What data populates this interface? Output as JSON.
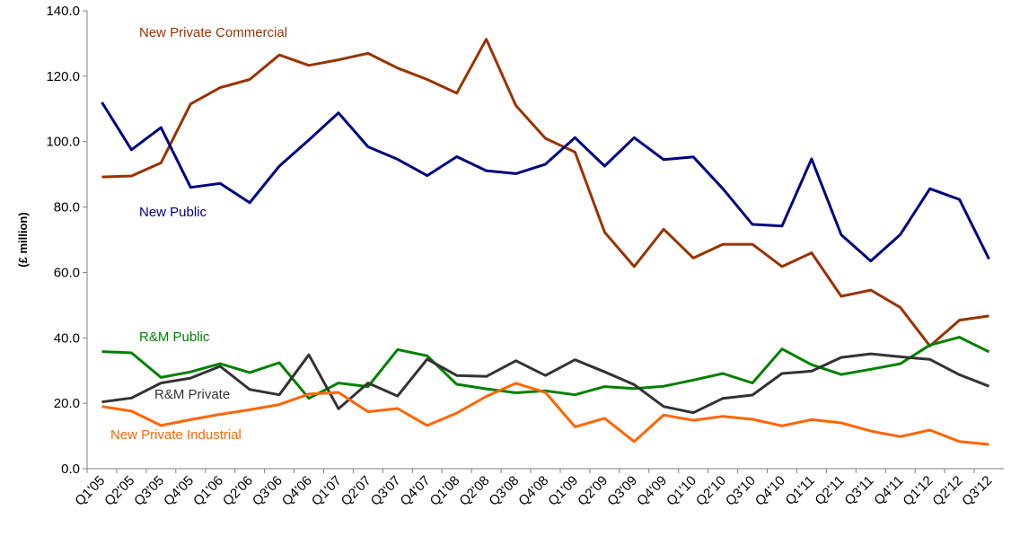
{
  "chart_data": {
    "type": "line",
    "y_label": "(£ million)",
    "categories": [
      "Q1'05",
      "Q2'05",
      "Q3'05",
      "Q4'05",
      "Q1'06",
      "Q2'06",
      "Q3'06",
      "Q4'06",
      "Q1'07",
      "Q2'07",
      "Q3'07",
      "Q4'07",
      "Q1'08",
      "Q2'08",
      "Q3'08",
      "Q4'08",
      "Q1'09",
      "Q2'09",
      "Q3'09",
      "Q4'09",
      "Q1'10",
      "Q2'10",
      "Q3'10",
      "Q4'10",
      "Q1'11",
      "Q2'11",
      "Q3'11",
      "Q4'11",
      "Q1'12",
      "Q2'12",
      "Q3'12"
    ],
    "series": [
      {
        "name": "New Private Commercial",
        "color": "#993300",
        "values": [
          89.2,
          89.5,
          93.5,
          111.5,
          116.5,
          119,
          126.5,
          123.3,
          125,
          127,
          122.5,
          119,
          114.8,
          131.3,
          111,
          101,
          96.8,
          72.3,
          61.8,
          73.2,
          64.4,
          68.6,
          68.6,
          61.8,
          66,
          52.7,
          54.6,
          49.3,
          37.5,
          45.4,
          46.7
        ]
      },
      {
        "name": "New Public",
        "color": "#000080",
        "values": [
          112,
          97.5,
          104.3,
          86,
          87.2,
          81.3,
          92.5,
          100.5,
          108.8,
          98.4,
          94.6,
          89.6,
          95.4,
          91.1,
          90.2,
          93.1,
          101.2,
          92.5,
          101.2,
          94.5,
          95.3,
          85.6,
          74.7,
          74.2,
          94.7,
          71.5,
          63.5,
          71.6,
          85.6,
          82.3,
          64.1
        ]
      },
      {
        "name": "R&M Public",
        "color": "#008000",
        "values": [
          35.8,
          35.4,
          27.9,
          29.6,
          32.1,
          29.4,
          32.4,
          21.5,
          26.2,
          25.1,
          36.4,
          34.5,
          25.8,
          24.4,
          23.2,
          23.8,
          22.6,
          25.1,
          24.5,
          25.2,
          27.1,
          29.1,
          26.2,
          36.6,
          31.8,
          28.8,
          30.4,
          32.1,
          37.8,
          40.2,
          35.7
        ]
      },
      {
        "name": "R&M Private",
        "color": "#333333",
        "values": [
          20.4,
          21.6,
          26.2,
          27.7,
          31.3,
          24.2,
          22.6,
          34.8,
          18.3,
          26.2,
          22.2,
          33.5,
          28.5,
          28.2,
          33,
          28.5,
          33.3,
          29.6,
          25.7,
          19,
          17.1,
          21.5,
          22.5,
          29.1,
          29.8,
          34,
          35.1,
          34.2,
          33.4,
          28.7,
          25.2
        ]
      },
      {
        "name": "New Private Industrial",
        "color": "#FF6600",
        "values": [
          19,
          17.6,
          13.2,
          15,
          16.6,
          18,
          19.6,
          22.8,
          23.3,
          17.4,
          18.4,
          13.2,
          17,
          22.1,
          26.1,
          23.3,
          12.8,
          15.4,
          8.3,
          16.4,
          14.8,
          16,
          15.1,
          13.1,
          15,
          14,
          11.5,
          9.8,
          11.8,
          8.3,
          7.4
        ]
      }
    ],
    "ylim": [
      0,
      140
    ],
    "yticks": [
      {
        "value": 0,
        "label": "0.0"
      },
      {
        "value": 20,
        "label": "20.0"
      },
      {
        "value": 40,
        "label": "40.0"
      },
      {
        "value": 60,
        "label": "60.0"
      },
      {
        "value": 80,
        "label": "80.0"
      },
      {
        "value": 100,
        "label": "100.0"
      },
      {
        "value": 120,
        "label": "120.0"
      },
      {
        "value": 140,
        "label": "140.0"
      }
    ]
  }
}
